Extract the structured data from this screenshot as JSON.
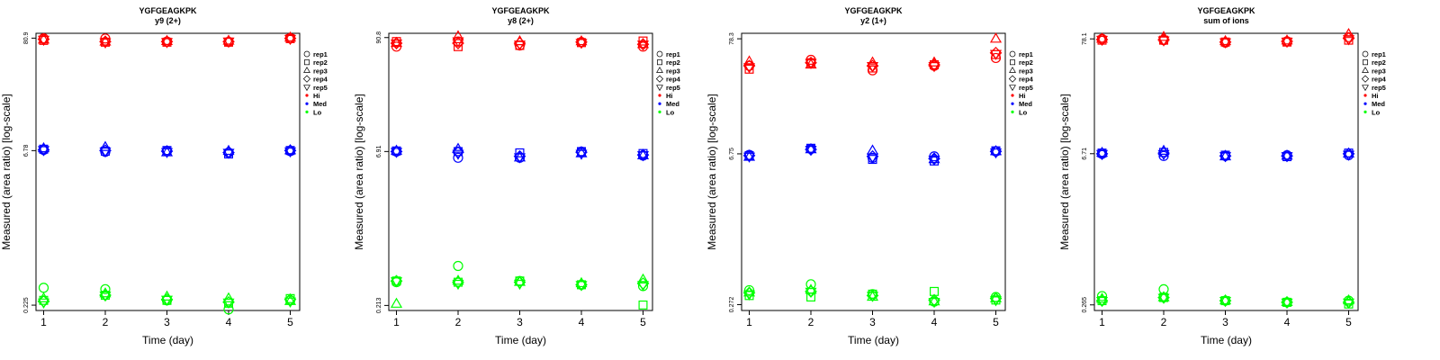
{
  "legend_entries": [
    {
      "label": "rep1",
      "marker": "circle",
      "kind": "shape"
    },
    {
      "label": "rep2",
      "marker": "square",
      "kind": "shape"
    },
    {
      "label": "rep3",
      "marker": "triangle-up",
      "kind": "shape"
    },
    {
      "label": "rep4",
      "marker": "diamond",
      "kind": "shape"
    },
    {
      "label": "rep5",
      "marker": "triangle-down",
      "kind": "shape"
    },
    {
      "label": "Hi",
      "color": "#ff0000",
      "kind": "color"
    },
    {
      "label": "Med",
      "color": "#0000ff",
      "kind": "color"
    },
    {
      "label": "Lo",
      "color": "#00ff00",
      "kind": "color"
    }
  ],
  "colors": {
    "Hi": "#ff0000",
    "Med": "#0000ff",
    "Lo": "#00ff00",
    "axis": "#000000"
  },
  "chart_data": [
    {
      "type": "scatter",
      "title": "YGFGEAGKPK",
      "subtitle": "y9 (2+)",
      "xlabel": "Time (day)",
      "ylabel": "Measured (area ratio) [log-scale]",
      "y_scale": "log",
      "x": [
        1,
        2,
        3,
        4,
        5
      ],
      "x_ticks": [
        "1",
        "2",
        "3",
        "4",
        "5"
      ],
      "y_ticks": [
        {
          "value": 0.225,
          "label": "0.225"
        },
        {
          "value": 6.78,
          "label": "6.78"
        },
        {
          "value": 80.9,
          "label": "80.9"
        }
      ],
      "ylim": [
        0.2,
        90
      ],
      "grid": false,
      "legend_position": "right",
      "series": [
        {
          "group": "Hi",
          "rep": "rep1",
          "marker": "circle",
          "values": [
            80.5,
            80.2,
            75.0,
            74.5,
            81.0
          ]
        },
        {
          "group": "Hi",
          "rep": "rep2",
          "marker": "square",
          "values": [
            77.0,
            74.0,
            74.0,
            74.0,
            80.0
          ]
        },
        {
          "group": "Hi",
          "rep": "rep3",
          "marker": "triangle-up",
          "values": [
            78.0,
            74.5,
            75.5,
            76.0,
            81.5
          ]
        },
        {
          "group": "Hi",
          "rep": "rep4",
          "marker": "diamond",
          "values": [
            79.0,
            75.0,
            75.0,
            75.0,
            80.5
          ]
        },
        {
          "group": "Hi",
          "rep": "rep5",
          "marker": "triangle-down",
          "values": [
            78.5,
            74.0,
            74.5,
            75.5,
            80.0
          ]
        },
        {
          "group": "Med",
          "rep": "rep1",
          "marker": "circle",
          "values": [
            6.9,
            6.6,
            6.7,
            6.5,
            6.7
          ]
        },
        {
          "group": "Med",
          "rep": "rep2",
          "marker": "square",
          "values": [
            7.0,
            6.7,
            6.8,
            6.3,
            6.8
          ]
        },
        {
          "group": "Med",
          "rep": "rep3",
          "marker": "triangle-up",
          "values": [
            7.1,
            7.3,
            6.5,
            6.7,
            6.8
          ]
        },
        {
          "group": "Med",
          "rep": "rep4",
          "marker": "diamond",
          "values": [
            6.9,
            6.8,
            6.7,
            6.5,
            6.8
          ]
        },
        {
          "group": "Med",
          "rep": "rep5",
          "marker": "triangle-down",
          "values": [
            6.9,
            6.7,
            6.6,
            6.5,
            6.7
          ]
        },
        {
          "group": "Lo",
          "rep": "rep1",
          "marker": "circle",
          "values": [
            0.33,
            0.32,
            0.25,
            0.205,
            0.25
          ]
        },
        {
          "group": "Lo",
          "rep": "rep2",
          "marker": "square",
          "values": [
            0.25,
            0.28,
            0.25,
            0.235,
            0.26
          ]
        },
        {
          "group": "Lo",
          "rep": "rep3",
          "marker": "triangle-up",
          "values": [
            0.26,
            0.29,
            0.27,
            0.26,
            0.245
          ]
        },
        {
          "group": "Lo",
          "rep": "rep4",
          "marker": "diamond",
          "values": [
            0.245,
            0.28,
            0.255,
            0.24,
            0.255
          ]
        },
        {
          "group": "Lo",
          "rep": "rep5",
          "marker": "triangle-down",
          "values": [
            0.24,
            0.28,
            0.255,
            0.24,
            0.245
          ]
        }
      ]
    },
    {
      "type": "scatter",
      "title": "YGFGEAGKPK",
      "subtitle": "y8 (2+)",
      "xlabel": "Time (day)",
      "ylabel": "Measured (area ratio) [log-scale]",
      "y_scale": "log",
      "x": [
        1,
        2,
        3,
        4,
        5
      ],
      "x_ticks": [
        "1",
        "2",
        "3",
        "4",
        "5"
      ],
      "y_ticks": [
        {
          "value": 0.213,
          "label": "0.213"
        },
        {
          "value": 6.91,
          "label": "6.91"
        },
        {
          "value": 90.8,
          "label": "90.8"
        }
      ],
      "ylim": [
        0.19,
        100
      ],
      "grid": false,
      "legend_position": "right",
      "series": [
        {
          "group": "Hi",
          "rep": "rep1",
          "marker": "circle",
          "values": [
            74.0,
            83.0,
            76.0,
            82.0,
            74.0
          ]
        },
        {
          "group": "Hi",
          "rep": "rep2",
          "marker": "square",
          "values": [
            83.0,
            74.0,
            76.0,
            81.0,
            84.0
          ]
        },
        {
          "group": "Hi",
          "rep": "rep3",
          "marker": "triangle-up",
          "values": [
            80.0,
            93.0,
            83.0,
            83.0,
            78.0
          ]
        },
        {
          "group": "Hi",
          "rep": "rep4",
          "marker": "diamond",
          "values": [
            80.0,
            80.0,
            80.0,
            82.0,
            78.0
          ]
        },
        {
          "group": "Hi",
          "rep": "rep5",
          "marker": "triangle-down",
          "values": [
            80.0,
            84.0,
            78.0,
            81.0,
            78.0
          ]
        },
        {
          "group": "Med",
          "rep": "rep1",
          "marker": "circle",
          "values": [
            6.9,
            6.0,
            6.0,
            6.9,
            6.3
          ]
        },
        {
          "group": "Med",
          "rep": "rep2",
          "marker": "square",
          "values": [
            7.0,
            6.9,
            6.7,
            6.9,
            6.6
          ]
        },
        {
          "group": "Med",
          "rep": "rep3",
          "marker": "triangle-up",
          "values": [
            7.0,
            7.3,
            6.0,
            6.6,
            6.3
          ]
        },
        {
          "group": "Med",
          "rep": "rep4",
          "marker": "diamond",
          "values": [
            6.9,
            6.8,
            6.2,
            6.8,
            6.4
          ]
        },
        {
          "group": "Med",
          "rep": "rep5",
          "marker": "triangle-down",
          "values": [
            6.9,
            6.6,
            6.1,
            6.6,
            6.4
          ]
        },
        {
          "group": "Lo",
          "rep": "rep1",
          "marker": "circle",
          "values": [
            0.36,
            0.52,
            0.37,
            0.34,
            0.33
          ]
        },
        {
          "group": "Lo",
          "rep": "rep2",
          "marker": "square",
          "values": [
            0.37,
            0.36,
            0.37,
            0.34,
            0.215
          ]
        },
        {
          "group": "Lo",
          "rep": "rep3",
          "marker": "triangle-up",
          "values": [
            0.22,
            0.37,
            0.36,
            0.35,
            0.38
          ]
        },
        {
          "group": "Lo",
          "rep": "rep4",
          "marker": "diamond",
          "values": [
            0.37,
            0.36,
            0.36,
            0.34,
            0.35
          ]
        },
        {
          "group": "Lo",
          "rep": "rep5",
          "marker": "triangle-down",
          "values": [
            0.37,
            0.35,
            0.35,
            0.34,
            0.34
          ]
        }
      ]
    },
    {
      "type": "scatter",
      "title": "YGFGEAGKPK",
      "subtitle": "y2 (1+)",
      "xlabel": "Time (day)",
      "ylabel": "Measured (area ratio) [log-scale]",
      "y_scale": "log",
      "x": [
        1,
        2,
        3,
        4,
        5
      ],
      "x_ticks": [
        "1",
        "2",
        "3",
        "4",
        "5"
      ],
      "y_ticks": [
        {
          "value": 0.272,
          "label": "0.272"
        },
        {
          "value": 6.75,
          "label": "6.75"
        },
        {
          "value": 78.3,
          "label": "78.3"
        }
      ],
      "ylim": [
        0.24,
        88
      ],
      "grid": false,
      "legend_position": "right",
      "series": [
        {
          "group": "Hi",
          "rep": "rep1",
          "marker": "circle",
          "values": [
            44.0,
            50.0,
            40.0,
            44.0,
            52.0
          ]
        },
        {
          "group": "Hi",
          "rep": "rep2",
          "marker": "square",
          "values": [
            41.0,
            47.0,
            42.0,
            45.0,
            56.0
          ]
        },
        {
          "group": "Hi",
          "rep": "rep3",
          "marker": "triangle-up",
          "values": [
            48.0,
            45.0,
            47.0,
            47.0,
            78.0
          ]
        },
        {
          "group": "Hi",
          "rep": "rep4",
          "marker": "diamond",
          "values": [
            44.0,
            47.0,
            44.0,
            45.0,
            58.0
          ]
        },
        {
          "group": "Hi",
          "rep": "rep5",
          "marker": "triangle-down",
          "values": [
            43.0,
            47.0,
            44.0,
            44.0,
            57.0
          ]
        },
        {
          "group": "Med",
          "rep": "rep1",
          "marker": "circle",
          "values": [
            6.6,
            7.5,
            6.2,
            6.4,
            7.1
          ]
        },
        {
          "group": "Med",
          "rep": "rep2",
          "marker": "square",
          "values": [
            6.5,
            7.6,
            6.0,
            5.8,
            7.2
          ]
        },
        {
          "group": "Med",
          "rep": "rep3",
          "marker": "triangle-up",
          "values": [
            6.3,
            7.4,
            7.2,
            6.0,
            7.1
          ]
        },
        {
          "group": "Med",
          "rep": "rep4",
          "marker": "diamond",
          "values": [
            6.5,
            7.4,
            6.4,
            6.1,
            7.1
          ]
        },
        {
          "group": "Med",
          "rep": "rep5",
          "marker": "triangle-down",
          "values": [
            6.4,
            7.4,
            6.3,
            6.0,
            7.0
          ]
        },
        {
          "group": "Lo",
          "rep": "rep1",
          "marker": "circle",
          "values": [
            0.37,
            0.42,
            0.34,
            0.29,
            0.32
          ]
        },
        {
          "group": "Lo",
          "rep": "rep2",
          "marker": "square",
          "values": [
            0.33,
            0.32,
            0.34,
            0.36,
            0.3
          ]
        },
        {
          "group": "Lo",
          "rep": "rep3",
          "marker": "triangle-up",
          "values": [
            0.35,
            0.37,
            0.32,
            0.29,
            0.31
          ]
        },
        {
          "group": "Lo",
          "rep": "rep4",
          "marker": "diamond",
          "values": [
            0.35,
            0.36,
            0.33,
            0.3,
            0.31
          ]
        },
        {
          "group": "Lo",
          "rep": "rep5",
          "marker": "triangle-down",
          "values": [
            0.34,
            0.36,
            0.33,
            0.29,
            0.3
          ]
        }
      ]
    },
    {
      "type": "scatter",
      "title": "YGFGEAGKPK",
      "subtitle": "sum of ions",
      "xlabel": "Time (day)",
      "ylabel": "Measured (area ratio) [log-scale]",
      "y_scale": "log",
      "x": [
        1,
        2,
        3,
        4,
        5
      ],
      "x_ticks": [
        "1",
        "2",
        "3",
        "4",
        "5"
      ],
      "y_ticks": [
        {
          "value": 0.265,
          "label": "0.265"
        },
        {
          "value": 6.71,
          "label": "6.71"
        },
        {
          "value": 78.1,
          "label": "78.1"
        }
      ],
      "ylim": [
        0.235,
        88
      ],
      "grid": false,
      "legend_position": "right",
      "series": [
        {
          "group": "Hi",
          "rep": "rep1",
          "marker": "circle",
          "values": [
            78.0,
            76.0,
            72.0,
            74.0,
            81.0
          ]
        },
        {
          "group": "Hi",
          "rep": "rep2",
          "marker": "square",
          "values": [
            76.0,
            76.0,
            73.0,
            73.0,
            76.0
          ]
        },
        {
          "group": "Hi",
          "rep": "rep3",
          "marker": "triangle-up",
          "values": [
            78.0,
            81.0,
            74.0,
            75.0,
            86.0
          ]
        },
        {
          "group": "Hi",
          "rep": "rep4",
          "marker": "diamond",
          "values": [
            77.0,
            77.0,
            73.0,
            74.0,
            79.0
          ]
        },
        {
          "group": "Hi",
          "rep": "rep5",
          "marker": "triangle-down",
          "values": [
            77.0,
            76.0,
            73.0,
            74.0,
            78.0
          ]
        },
        {
          "group": "Med",
          "rep": "rep1",
          "marker": "circle",
          "values": [
            6.7,
            6.4,
            6.4,
            6.5,
            6.5
          ]
        },
        {
          "group": "Med",
          "rep": "rep2",
          "marker": "square",
          "values": [
            6.8,
            6.9,
            6.5,
            6.3,
            6.8
          ]
        },
        {
          "group": "Med",
          "rep": "rep3",
          "marker": "triangle-up",
          "values": [
            6.8,
            7.1,
            6.3,
            6.4,
            6.7
          ]
        },
        {
          "group": "Med",
          "rep": "rep4",
          "marker": "diamond",
          "values": [
            6.7,
            6.8,
            6.4,
            6.4,
            6.7
          ]
        },
        {
          "group": "Med",
          "rep": "rep5",
          "marker": "triangle-down",
          "values": [
            6.7,
            6.7,
            6.4,
            6.4,
            6.6
          ]
        },
        {
          "group": "Lo",
          "rep": "rep1",
          "marker": "circle",
          "values": [
            0.32,
            0.37,
            0.29,
            0.28,
            0.29
          ]
        },
        {
          "group": "Lo",
          "rep": "rep2",
          "marker": "square",
          "values": [
            0.29,
            0.31,
            0.29,
            0.28,
            0.27
          ]
        },
        {
          "group": "Lo",
          "rep": "rep3",
          "marker": "triangle-up",
          "values": [
            0.3,
            0.31,
            0.29,
            0.28,
            0.29
          ]
        },
        {
          "group": "Lo",
          "rep": "rep4",
          "marker": "diamond",
          "values": [
            0.29,
            0.31,
            0.29,
            0.28,
            0.28
          ]
        },
        {
          "group": "Lo",
          "rep": "rep5",
          "marker": "triangle-down",
          "values": [
            0.29,
            0.31,
            0.29,
            0.28,
            0.28
          ]
        }
      ]
    }
  ]
}
